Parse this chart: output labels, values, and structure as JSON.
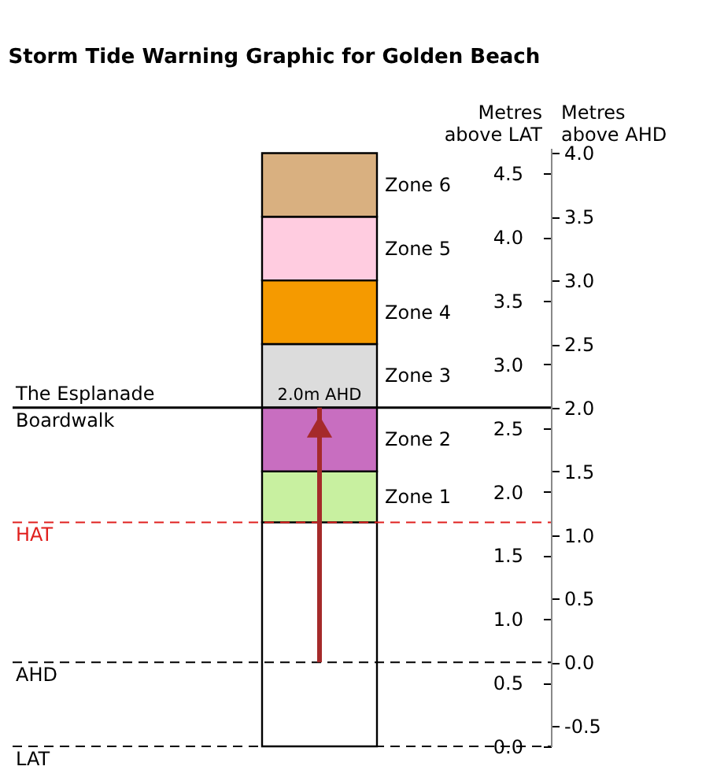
{
  "chart_data": {
    "type": "bar",
    "title": "Storm Tide Warning Graphic for Golden Beach",
    "ylabel": "Metres above LAT",
    "y2label": "Metres above AHD",
    "categories": [
      null
    ],
    "stacked": true,
    "legend": false,
    "grid": false,
    "series": [
      {
        "color": "#ffffff",
        "values": [
          1.76
        ]
      },
      {
        "name": "Zone 1",
        "color": "#c8f0a0",
        "values": [
          0.4
        ]
      },
      {
        "name": "Zone 2",
        "color": "#c86ec0",
        "values": [
          0.5
        ]
      },
      {
        "name": "Zone 3",
        "color": "#dcdcdc",
        "values": [
          0.5
        ]
      },
      {
        "name": "Zone 4",
        "color": "#f59a00",
        "values": [
          0.5
        ]
      },
      {
        "name": "Zone 5",
        "color": "#ffcce0",
        "values": [
          0.5
        ]
      },
      {
        "name": "Zone 6",
        "color": "#d9b080",
        "values": [
          0.5
        ]
      }
    ],
    "ylim": [
      0,
      4.7
    ],
    "yticks": [
      {
        "value": 0,
        "label": "0.0"
      },
      0.5,
      {
        "value": 1,
        "label": "1.0"
      },
      1.5,
      {
        "value": 2,
        "label": "2.0"
      },
      2.5,
      {
        "value": 3,
        "label": "3.0"
      },
      3.5,
      {
        "value": 4,
        "label": "4.0"
      },
      4.5
    ],
    "y2lim": [
      -0.66,
      4.04
    ],
    "y2ticks": [
      -0.5,
      {
        "value": 0,
        "label": "0.0"
      },
      0.5,
      {
        "value": 1,
        "label": "1.0"
      },
      1.5,
      {
        "value": 2,
        "label": "2.0"
      },
      2.5,
      {
        "value": 3,
        "label": "3.0"
      },
      3.5,
      {
        "value": 4,
        "label": "4.0"
      }
    ],
    "ref_lines": [
      {
        "axis": "y2",
        "value": 2.0,
        "label": "The Esplanade Boardwalk",
        "color": "#000000",
        "line_style": "solid"
      },
      {
        "axis": "y2",
        "value": 1.1,
        "label": "HAT",
        "color": "#e0201e",
        "line_style": "dashed"
      },
      {
        "axis": "y2",
        "value": 0,
        "label": "AHD",
        "color": "#000000",
        "line_style": "dashed"
      },
      {
        "axis": "y",
        "value": 0,
        "label": "LAT",
        "color": "#000000",
        "line_style": "dashed"
      }
    ],
    "annotations": [
      {
        "text": "2.0m AHD",
        "y": 2.66
      }
    ]
  }
}
